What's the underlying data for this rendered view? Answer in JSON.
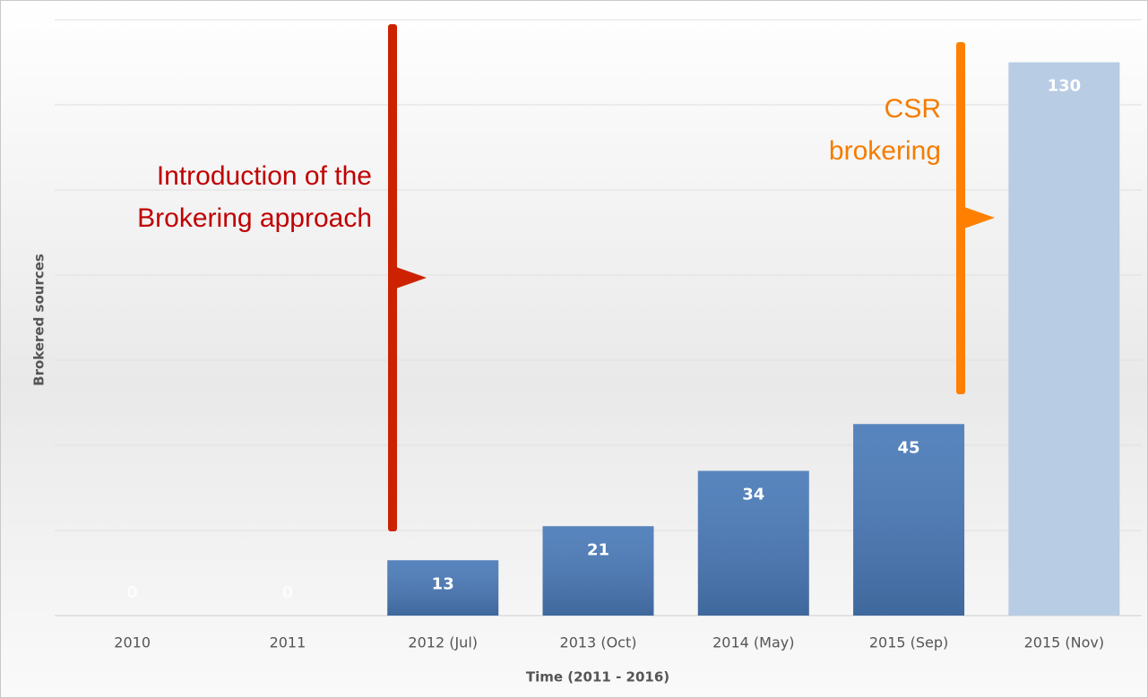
{
  "chart_data": {
    "type": "bar",
    "x_label": "Time (2011 - 2016)",
    "y_label": "Brokered sources",
    "categories": [
      "2010",
      "2011",
      "2012 (Jul)",
      "2013 (Oct)",
      "2014 (May)",
      "2015 (Sep)",
      "2015 (Nov)"
    ],
    "values": [
      0,
      0,
      13,
      21,
      34,
      45,
      130
    ],
    "colors": [
      "#4a7ab8",
      "#4a7ab8",
      "#4a7ab8",
      "#4a7ab8",
      "#4a7ab8",
      "#4a7ab8",
      "#b8cce4"
    ],
    "ylim": [
      0,
      140
    ],
    "yticks": [
      0,
      20,
      40,
      60,
      80,
      100,
      120,
      140
    ],
    "grid": true,
    "annotations": [
      {
        "lines": [
          "Introduction of the",
          "Brokering approach"
        ],
        "color": "#c00000",
        "line_color": "#cc2200"
      },
      {
        "lines": [
          "CSR",
          "brokering"
        ],
        "color": "#f57c00",
        "line_color": "#ff8000"
      }
    ]
  }
}
